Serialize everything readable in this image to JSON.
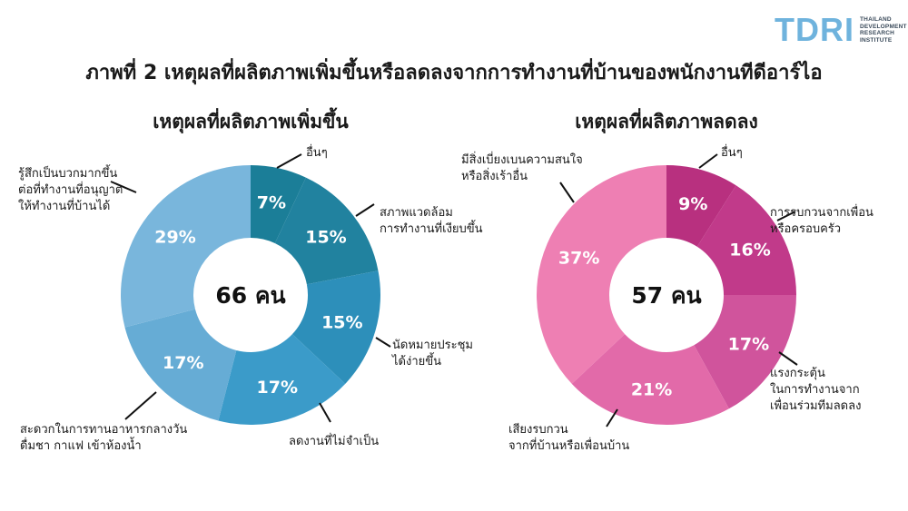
{
  "logo": {
    "mark": "TDRI",
    "sub_lines": [
      "THAILAND",
      "DEVELOPMENT",
      "RESEARCH",
      "INSTITUTE"
    ],
    "color": "#6fb3dd"
  },
  "title": "ภาพที่ 2 เหตุผลที่ผลิตภาพเพิ่มขึ้นหรือลดลงจากการทำงานที่บ้านของพนักงานทีดีอาร์ไอ",
  "charts": {
    "left": {
      "subtitle": "เหตุผลที่ผลิตภาพเพิ่มขึ้น",
      "center_label": "66 คน"
    },
    "right": {
      "subtitle": "เหตุผลที่ผลิตภาพลดลง",
      "center_label": "57 คน"
    }
  },
  "chart_data": [
    {
      "type": "pie",
      "subtype": "donut",
      "title": "เหตุผลที่ผลิตภาพเพิ่มขึ้น",
      "total": "66 คน",
      "categories": [
        "อื่นๆ",
        "สภาพแวดล้อมการทำงานที่เงียบขึ้น",
        "นัดหมายประชุมได้ง่ายขึ้น",
        "ลดงานที่ไม่จำเป็น",
        "สะดวกในการทานอาหารกลางวัน ดื่มชา กาแฟ เข้าห้องน้ำ",
        "รู้สึกเป็นบวกมากขึ้นต่อที่ทำงานที่อนุญาตให้ทำงานที่บ้านได้"
      ],
      "values": [
        7,
        15,
        15,
        17,
        17,
        29
      ],
      "value_labels": [
        "7%",
        "15%",
        "15%",
        "17%",
        "17%",
        "29%"
      ],
      "colors": [
        "#1b7e98",
        "#21829f",
        "#2d8fba",
        "#3b9bc9",
        "#66acd5",
        "#79b6dc"
      ],
      "label_lines": [
        [
          "อื่นๆ"
        ],
        [
          "สภาพแวดล้อม",
          "การทำงานที่เงียบขึ้น"
        ],
        [
          "นัดหมายประชุม",
          "ได้ง่ายขึ้น"
        ],
        [
          "ลดงานที่ไม่จำเป็น"
        ],
        [
          "สะดวกในการทานอาหารกลางวัน",
          "ดื่มชา กาแฟ เข้าห้องน้ำ"
        ],
        [
          "รู้สึกเป็นบวกมากขึ้น",
          "ต่อที่ทำงานที่อนุญาต",
          "ให้ทำงานที่บ้านได้"
        ]
      ],
      "start_angle": "12 o'clock, clockwise"
    },
    {
      "type": "pie",
      "subtype": "donut",
      "title": "เหตุผลที่ผลิตภาพลดลง",
      "total": "57 คน",
      "categories": [
        "อื่นๆ",
        "การรบกวนจากเพื่อนหรือครอบครัว",
        "แรงกระตุ้นในการทำงานจากเพื่อนร่วมทีมลดลง",
        "เสียงรบกวนจากที่บ้านหรือเพื่อนบ้าน",
        "มีสิ่งเบี่ยงเบนความสนใจหรือสิ่งเร้าอื่น"
      ],
      "values": [
        9,
        16,
        17,
        21,
        37
      ],
      "value_labels": [
        "9%",
        "16%",
        "17%",
        "21%",
        "37%"
      ],
      "colors": [
        "#b8307f",
        "#c13a8a",
        "#d0549c",
        "#e26aa9",
        "#ee7fb3"
      ],
      "label_lines": [
        [
          "อื่นๆ"
        ],
        [
          "การรบกวนจากเพื่อน",
          "หรือครอบครัว"
        ],
        [
          "แรงกระตุ้น",
          "ในการทำงานจาก",
          "เพื่อนร่วมทีมลดลง"
        ],
        [
          "เสียงรบกวน",
          "จากที่บ้านหรือเพื่อนบ้าน"
        ],
        [
          "มีสิ่งเบี่ยงเบนความสนใจ",
          "หรือสิ่งเร้าอื่น"
        ]
      ],
      "start_angle": "12 o'clock, clockwise"
    }
  ]
}
